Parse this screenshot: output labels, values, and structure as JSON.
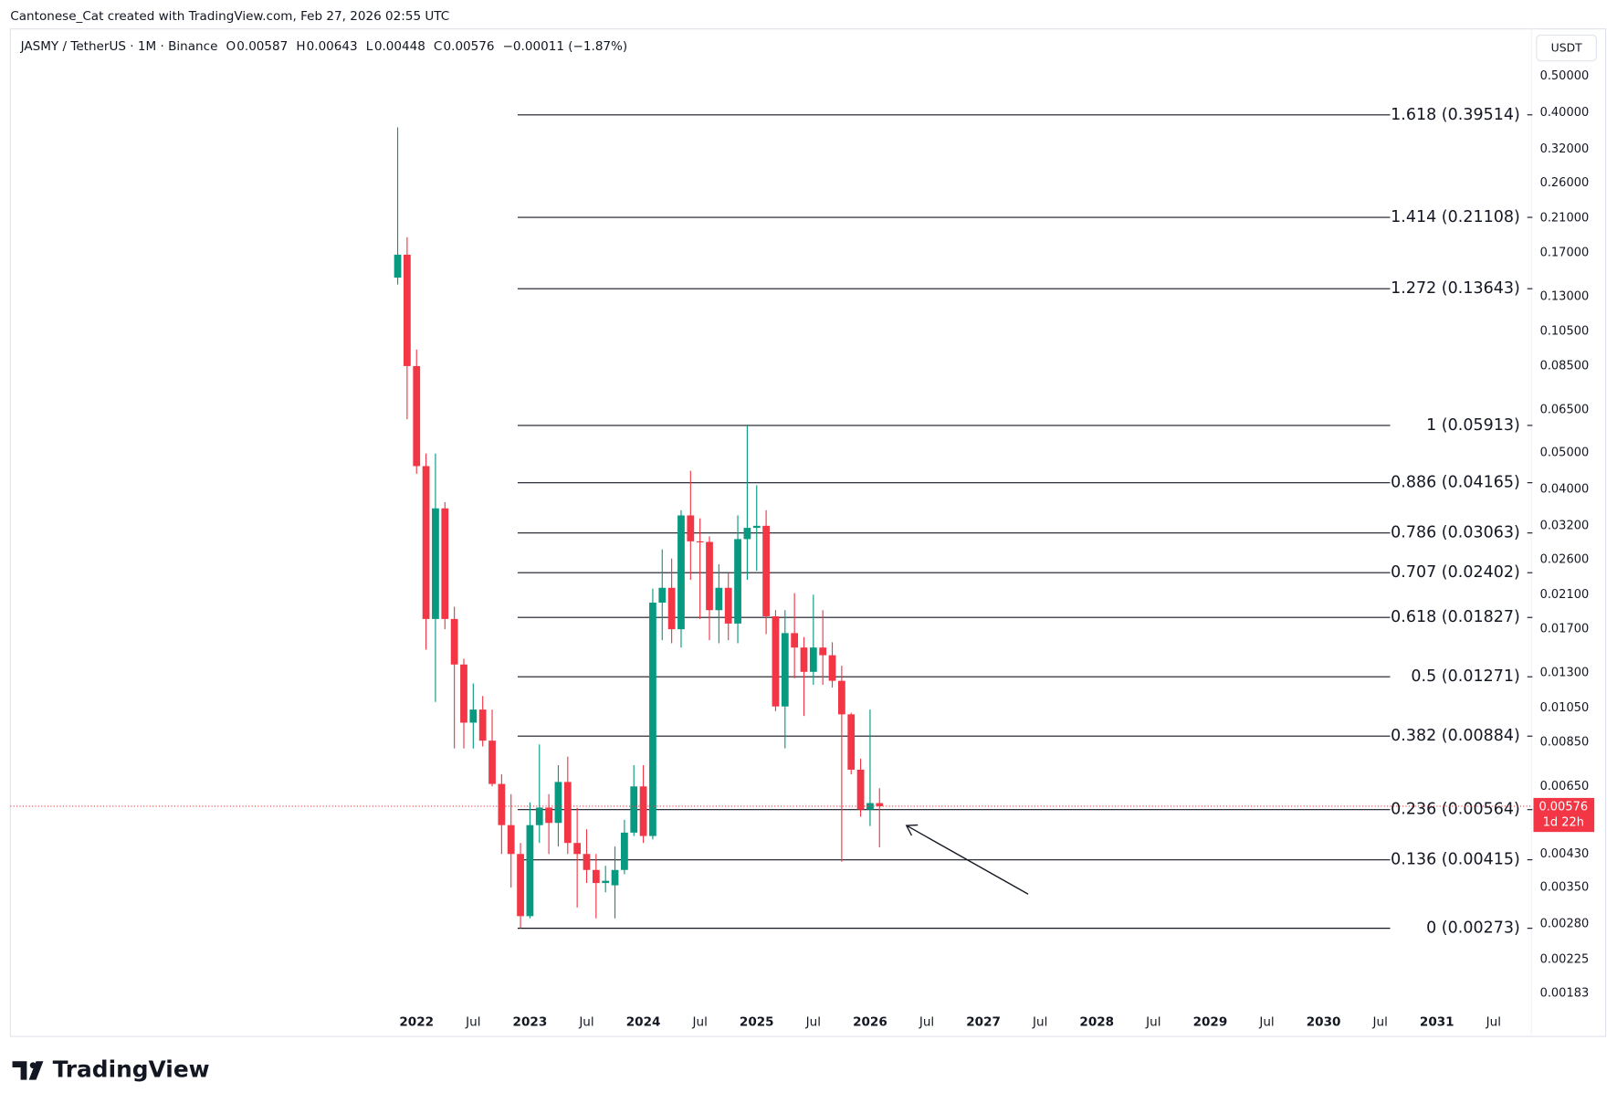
{
  "header": "Cantonese_Cat created with TradingView.com, Feb 27, 2026 02:55 UTC",
  "brand": "TradingView",
  "chart_data": {
    "type": "candlestick",
    "title": "JASMY / TetherUS · 1M · Binance",
    "ohlc_legend": [
      {
        "key": "O",
        "value": 0.00587
      },
      {
        "key": "H",
        "value": 0.00643
      },
      {
        "key": "L",
        "value": 0.00448
      },
      {
        "key": "C",
        "value": 0.00576
      }
    ],
    "change": "−0.00011 (−1.87%)",
    "unit_label": "USDT",
    "up_color": "#089981",
    "down_color": "#f23645",
    "log_scale": true,
    "grid": false,
    "x": [
      "2021-11",
      "2021-12",
      "2022-01",
      "2022-02",
      "2022-03",
      "2022-04",
      "2022-05",
      "2022-06",
      "2022-07",
      "2022-08",
      "2022-09",
      "2022-10",
      "2022-11",
      "2022-12",
      "2023-01",
      "2023-02",
      "2023-03",
      "2023-04",
      "2023-05",
      "2023-06",
      "2023-07",
      "2023-08",
      "2023-09",
      "2023-10",
      "2023-11",
      "2023-12",
      "2024-01",
      "2024-02",
      "2024-03",
      "2024-04",
      "2024-05",
      "2024-06",
      "2024-07",
      "2024-08",
      "2024-09",
      "2024-10",
      "2024-11",
      "2024-12",
      "2025-01",
      "2025-02",
      "2025-03",
      "2025-04",
      "2025-05",
      "2025-06",
      "2025-07",
      "2025-08",
      "2025-09",
      "2025-10",
      "2025-11",
      "2025-12",
      "2026-01",
      "2026-02"
    ],
    "open": [
      0.146,
      0.168,
      0.085,
      0.0461,
      0.0181,
      0.0356,
      0.0181,
      0.0137,
      0.0096,
      0.0104,
      0.0086,
      0.0066,
      0.00513,
      0.0043,
      0.00294,
      0.00513,
      0.00571,
      0.0052,
      0.00668,
      0.0046,
      0.0043,
      0.0039,
      0.0036,
      0.00355,
      0.0039,
      0.0049,
      0.0065,
      0.0048,
      0.02,
      0.0219,
      0.017,
      0.0341,
      0.0291,
      0.029,
      0.0191,
      0.0219,
      0.0176,
      0.0295,
      0.0316,
      0.032,
      0.0184,
      0.0106,
      0.0166,
      0.0152,
      0.0131,
      0.0152,
      0.0145,
      0.0124,
      0.0101,
      0.0072,
      0.00564,
      0.00587
    ],
    "high": [
      0.366,
      0.187,
      0.094,
      0.0498,
      0.0498,
      0.037,
      0.0195,
      0.0142,
      0.0122,
      0.0113,
      0.0104,
      0.007,
      0.0062,
      0.0046,
      0.00589,
      0.0084,
      0.0062,
      0.0074,
      0.0078,
      0.0057,
      0.005,
      0.0043,
      0.004,
      0.0045,
      0.0053,
      0.0074,
      0.0074,
      0.0218,
      0.0277,
      0.0262,
      0.0352,
      0.0448,
      0.0335,
      0.03,
      0.0253,
      0.024,
      0.0341,
      0.0591,
      0.041,
      0.0352,
      0.0191,
      0.0191,
      0.0212,
      0.0162,
      0.021,
      0.0191,
      0.0157,
      0.0136,
      0.0102,
      0.0077,
      0.0104,
      0.00643
    ],
    "low": [
      0.14,
      0.0614,
      0.044,
      0.015,
      0.0109,
      0.017,
      0.0082,
      0.0082,
      0.0082,
      0.0083,
      0.0065,
      0.0043,
      0.0035,
      0.00273,
      0.0029,
      0.0046,
      0.0043,
      0.0045,
      0.0043,
      0.0031,
      0.0036,
      0.0029,
      0.0034,
      0.0029,
      0.0038,
      0.0048,
      0.0046,
      0.0047,
      0.0159,
      0.0156,
      0.0152,
      0.023,
      0.0181,
      0.0159,
      0.0156,
      0.0159,
      0.0156,
      0.023,
      0.0243,
      0.0165,
      0.0103,
      0.0082,
      0.0126,
      0.01,
      0.0121,
      0.0121,
      0.0119,
      0.0041,
      0.007,
      0.0054,
      0.0051,
      0.00448
    ],
    "close": [
      0.168,
      0.085,
      0.0461,
      0.0181,
      0.0356,
      0.0181,
      0.0137,
      0.0096,
      0.0104,
      0.0086,
      0.0066,
      0.00513,
      0.0043,
      0.00294,
      0.00513,
      0.00571,
      0.0052,
      0.00668,
      0.0046,
      0.0043,
      0.0039,
      0.0036,
      0.00365,
      0.0039,
      0.0049,
      0.0065,
      0.0048,
      0.02,
      0.0219,
      0.017,
      0.0341,
      0.0291,
      0.029,
      0.0191,
      0.0219,
      0.0176,
      0.0295,
      0.0316,
      0.032,
      0.0184,
      0.0106,
      0.0166,
      0.0152,
      0.0131,
      0.0152,
      0.0145,
      0.0124,
      0.0101,
      0.0072,
      0.00564,
      0.00587,
      0.00576
    ],
    "xlim": [
      "2018-06",
      "2031-11"
    ],
    "xticks": [
      {
        "value": "2022-01",
        "label": "2022"
      },
      {
        "value": "2022-07",
        "label": "Jul"
      },
      {
        "value": "2023-01",
        "label": "2023"
      },
      {
        "value": "2023-07",
        "label": "Jul"
      },
      {
        "value": "2024-01",
        "label": "2024"
      },
      {
        "value": "2024-07",
        "label": "Jul"
      },
      {
        "value": "2025-01",
        "label": "2025"
      },
      {
        "value": "2025-07",
        "label": "Jul"
      },
      {
        "value": "2026-01",
        "label": "2026"
      },
      {
        "value": "2026-07",
        "label": "Jul"
      },
      {
        "value": "2027-01",
        "label": "2027"
      },
      {
        "value": "2027-07",
        "label": "Jul"
      },
      {
        "value": "2028-01",
        "label": "2028"
      },
      {
        "value": "2028-07",
        "label": "Jul"
      },
      {
        "value": "2029-01",
        "label": "2029"
      },
      {
        "value": "2029-07",
        "label": "Jul"
      },
      {
        "value": "2030-01",
        "label": "2030"
      },
      {
        "value": "2030-07",
        "label": "Jul"
      },
      {
        "value": "2031-01",
        "label": "2031"
      },
      {
        "value": "2031-07",
        "label": "Jul"
      }
    ],
    "ylim": [
      0.00167,
      0.66
    ],
    "yticks": [
      {
        "value": 0.5,
        "label": "0.50000"
      },
      {
        "value": 0.4,
        "label": "0.40000"
      },
      {
        "value": 0.32,
        "label": "0.32000"
      },
      {
        "value": 0.26,
        "label": "0.26000"
      },
      {
        "value": 0.21,
        "label": "0.21000"
      },
      {
        "value": 0.17,
        "label": "0.17000"
      },
      {
        "value": 0.13,
        "label": "0.13000"
      },
      {
        "value": 0.105,
        "label": "0.10500"
      },
      {
        "value": 0.085,
        "label": "0.08500"
      },
      {
        "value": 0.065,
        "label": "0.06500"
      },
      {
        "value": 0.05,
        "label": "0.05000"
      },
      {
        "value": 0.04,
        "label": "0.04000"
      },
      {
        "value": 0.032,
        "label": "0.03200"
      },
      {
        "value": 0.026,
        "label": "0.02600"
      },
      {
        "value": 0.021,
        "label": "0.02100"
      },
      {
        "value": 0.017,
        "label": "0.01700"
      },
      {
        "value": 0.013,
        "label": "0.01300"
      },
      {
        "value": 0.0105,
        "label": "0.01050"
      },
      {
        "value": 0.0085,
        "label": "0.00850"
      },
      {
        "value": 0.0065,
        "label": "0.00650"
      },
      {
        "value": 0.0043,
        "label": "0.00430"
      },
      {
        "value": 0.0035,
        "label": "0.00350"
      },
      {
        "value": 0.0028,
        "label": "0.00280"
      },
      {
        "value": 0.00225,
        "label": "0.00225"
      },
      {
        "value": 0.00183,
        "label": "0.00183"
      }
    ],
    "fib_levels": [
      {
        "value": 0.39514,
        "label": "1.618 (0.39514)"
      },
      {
        "value": 0.21108,
        "label": "1.414 (0.21108)"
      },
      {
        "value": 0.13643,
        "label": "1.272 (0.13643)"
      },
      {
        "value": 0.05913,
        "label": "1 (0.05913)"
      },
      {
        "value": 0.04165,
        "label": "0.886 (0.04165)"
      },
      {
        "value": 0.03063,
        "label": "0.786 (0.03063)"
      },
      {
        "value": 0.02402,
        "label": "0.707 (0.02402)"
      },
      {
        "value": 0.01827,
        "label": "0.618 (0.01827)"
      },
      {
        "value": 0.01271,
        "label": "0.5 (0.01271)"
      },
      {
        "value": 0.00884,
        "label": "0.382 (0.00884)"
      },
      {
        "value": 0.00564,
        "label": "0.236 (0.00564)"
      },
      {
        "value": 0.00415,
        "label": "0.136 (0.00415)"
      },
      {
        "value": 0.00273,
        "label": "0 (0.00273)"
      }
    ],
    "last_price": 0.00576,
    "countdown": "1d 22h"
  }
}
